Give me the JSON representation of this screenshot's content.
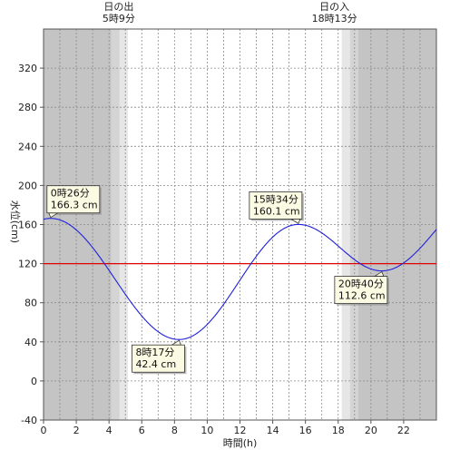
{
  "chart_data": {
    "type": "line",
    "xlabel": "時間(h)",
    "ylabel": "水位(cm)",
    "xlim": [
      0,
      24
    ],
    "ylim": [
      -40,
      360
    ],
    "xticks": [
      0,
      2,
      4,
      6,
      8,
      10,
      12,
      14,
      16,
      18,
      20,
      22
    ],
    "yticks": [
      -40,
      0,
      40,
      80,
      120,
      160,
      200,
      240,
      280,
      320
    ],
    "grid": true,
    "reference_line": {
      "value": 120,
      "color": "#e00000"
    },
    "line_color": "#2020dd",
    "extrema": [
      {
        "x": 0.433,
        "y": 166.3,
        "time": "0時26分",
        "value": "166.3 cm",
        "position": "top-right"
      },
      {
        "x": 8.283,
        "y": 42.4,
        "time": "8時17分",
        "value": "42.4 cm",
        "position": "bottom-left"
      },
      {
        "x": 15.567,
        "y": 160.1,
        "time": "15時34分",
        "value": "160.1 cm",
        "position": "top-left"
      },
      {
        "x": 20.667,
        "y": 112.6,
        "time": "20時40分",
        "value": "112.6 cm",
        "position": "bottom-left"
      }
    ],
    "end_value": {
      "x": 24,
      "y": 155
    },
    "sunrise": {
      "title": "日の出",
      "time": "5時9分",
      "x": 5.15
    },
    "sunset": {
      "title": "日の入",
      "time": "18時13分",
      "x": 18.217
    },
    "shading": {
      "night_color": "#c4c4c4",
      "twilight_dark_color": "#d4d4d4",
      "twilight_light_color": "#e6e6e6",
      "day_color": "#ffffff",
      "bands": [
        {
          "from": 0,
          "to": 4.15,
          "tone": "night"
        },
        {
          "from": 4.15,
          "to": 4.65,
          "tone": "twilight_dark"
        },
        {
          "from": 4.65,
          "to": 5.15,
          "tone": "twilight_light"
        },
        {
          "from": 5.15,
          "to": 18.217,
          "tone": "day"
        },
        {
          "from": 18.217,
          "to": 18.717,
          "tone": "twilight_light"
        },
        {
          "from": 18.717,
          "to": 19.217,
          "tone": "twilight_dark"
        },
        {
          "from": 19.217,
          "to": 24,
          "tone": "night"
        }
      ]
    }
  }
}
